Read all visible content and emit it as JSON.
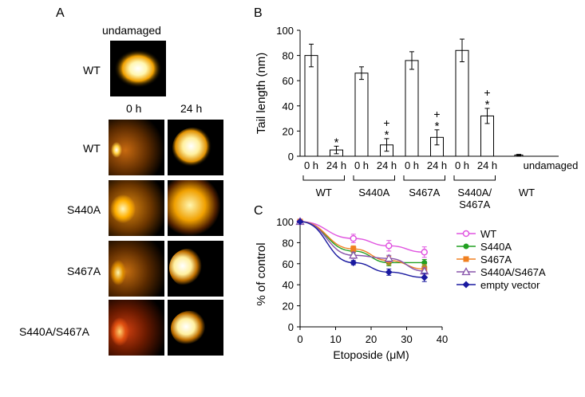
{
  "panel_a": {
    "letter": "A",
    "undamaged_title": "undamaged",
    "wt_label": "WT",
    "time_labels": [
      "0 h",
      "24 h"
    ],
    "row_labels": [
      "WT",
      "S440A",
      "S467A",
      "S440A/S467A"
    ]
  },
  "panel_b": {
    "letter": "B",
    "chart_data": {
      "type": "bar",
      "ylabel": "Tail length (nm)",
      "ylim": [
        0,
        100
      ],
      "yticks": [
        "0",
        "20",
        "40",
        "60",
        "80",
        "100"
      ],
      "bar_labels": [
        "0 h",
        "24 h",
        "0 h",
        "24 h",
        "0 h",
        "24 h",
        "0 h",
        "24 h",
        "undamaged"
      ],
      "values": [
        80,
        5,
        66,
        9,
        76,
        15,
        84,
        32,
        1
      ],
      "errors": [
        9,
        3,
        5,
        5,
        7,
        6,
        9,
        6,
        0.5
      ],
      "annotations": [
        "",
        "*",
        "",
        "+\n*",
        "",
        "+\n*",
        "",
        "+\n*",
        ""
      ],
      "groups": [
        "WT",
        "S440A",
        "S467A",
        "S440A/\nS467A",
        "WT"
      ]
    }
  },
  "panel_c": {
    "letter": "C",
    "chart_data": {
      "type": "line",
      "xlabel": "Etoposide (μM)",
      "ylabel": "% of control",
      "xlim": [
        0,
        40
      ],
      "ylim": [
        0,
        100
      ],
      "xticks": [
        "0",
        "10",
        "20",
        "30",
        "40"
      ],
      "yticks": [
        "0",
        "20",
        "40",
        "60",
        "80",
        "100"
      ],
      "x": [
        0,
        15,
        25,
        35
      ],
      "series": [
        {
          "name": "WT",
          "values": [
            100,
            84,
            77,
            71
          ],
          "errors": [
            0,
            4,
            5,
            5
          ],
          "color": "#e055e0",
          "marker": "circle-open"
        },
        {
          "name": "S440A",
          "values": [
            100,
            72,
            61,
            61
          ],
          "errors": [
            0,
            3,
            3,
            3
          ],
          "color": "#22a022",
          "marker": "circle"
        },
        {
          "name": "S467A",
          "values": [
            100,
            74,
            63,
            55
          ],
          "errors": [
            0,
            3,
            4,
            4
          ],
          "color": "#f08020",
          "marker": "square"
        },
        {
          "name": "S440A/S467A",
          "values": [
            100,
            68,
            65,
            53
          ],
          "errors": [
            0,
            3,
            3,
            3
          ],
          "color": "#8855aa",
          "marker": "triangle"
        },
        {
          "name": "empty vector",
          "values": [
            100,
            61,
            52,
            47
          ],
          "errors": [
            0,
            2,
            3,
            4
          ],
          "color": "#1a1aa0",
          "marker": "diamond"
        }
      ]
    }
  }
}
